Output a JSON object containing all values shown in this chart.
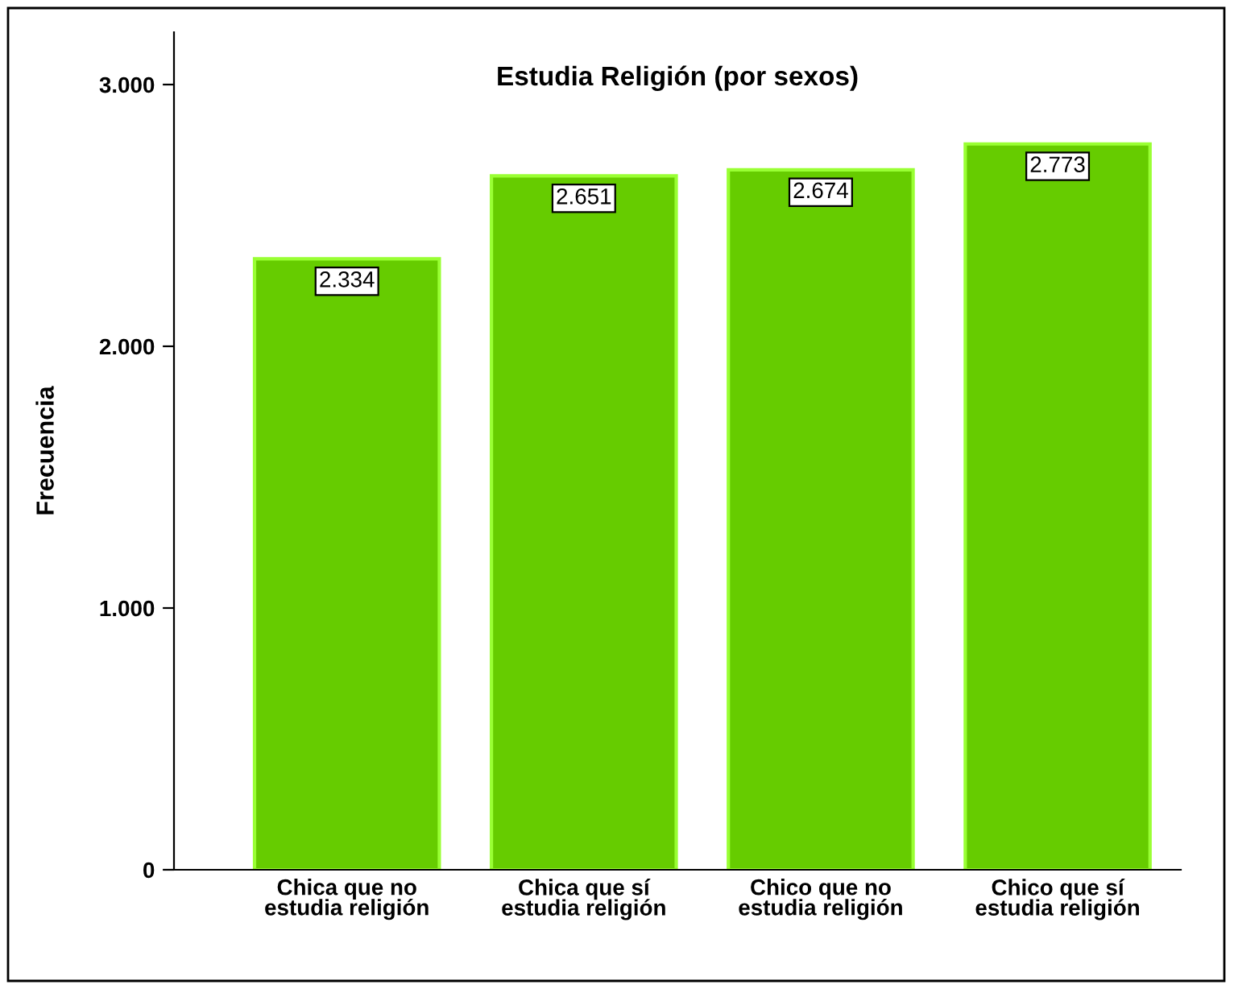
{
  "chart_data": {
    "type": "bar",
    "title": "Estudia Religión (por sexos)",
    "ylabel": "Frecuencia",
    "categories": [
      "Chica que no\nestudia religión",
      "Chica que sí\nestudia religión",
      "Chico que no\nestudia religión",
      "Chico que sí\nestudia religión"
    ],
    "values": [
      2334,
      2651,
      2674,
      2773
    ],
    "value_labels": [
      "2.334",
      "2.651",
      "2.674",
      "2.773"
    ],
    "color": "#66cc00",
    "ylim": [
      0,
      3200
    ],
    "yticks": [
      {
        "value": 0,
        "label": "0"
      },
      {
        "value": 1000,
        "label": "1.000"
      },
      {
        "value": 2000,
        "label": "2.000"
      },
      {
        "value": 3000,
        "label": "3.000"
      }
    ],
    "grid": false,
    "legend": false
  }
}
